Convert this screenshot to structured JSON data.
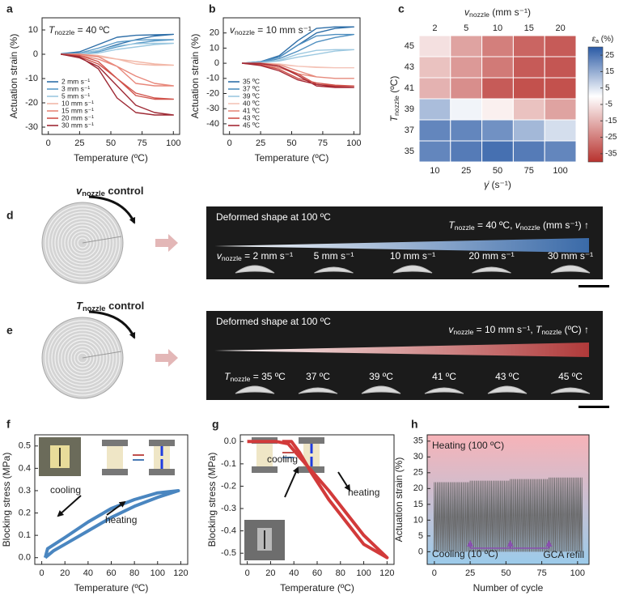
{
  "chart_data": [
    {
      "type": "line",
      "panel_label": "a",
      "annotation": [
        {
          "t": "T",
          "i": true
        },
        {
          "t": "nozzle",
          "sub": true
        },
        {
          "t": " = 40 ºC"
        }
      ],
      "xlabel": "Temperature (ºC)",
      "ylabel": "Actuation strain (%)",
      "xlim": [
        -5,
        105
      ],
      "xticks": [
        0,
        25,
        50,
        75,
        100
      ],
      "ylim": [
        -33,
        15
      ],
      "yticks": [
        -30,
        -20,
        -10,
        0,
        10
      ],
      "legend_corner": "lower left",
      "x": [
        10,
        25,
        40,
        55,
        70,
        85,
        100,
        85,
        70,
        55,
        40,
        25,
        10
      ],
      "series": [
        {
          "name": "2 mm s⁻¹",
          "color": "#2f6fa8",
          "values": [
            0,
            0.3,
            1.5,
            4,
            6,
            7.5,
            8.2,
            8,
            7.8,
            7,
            4,
            1,
            0.2
          ]
        },
        {
          "name": "3 mm s⁻¹",
          "color": "#5b9bc8",
          "values": [
            0,
            0.2,
            1,
            3,
            4.5,
            5.5,
            6,
            6,
            5.8,
            5,
            2.5,
            0.5,
            0
          ]
        },
        {
          "name": "5 mm s⁻¹",
          "color": "#9cc8e0",
          "values": [
            0,
            0,
            0.5,
            2,
            3,
            4,
            4.5,
            4.5,
            4.3,
            3.5,
            1.5,
            0.2,
            0
          ]
        },
        {
          "name": "10 mm s⁻¹",
          "color": "#f2b8a8",
          "values": [
            0,
            -0.3,
            -1,
            -2,
            -3,
            -4,
            -4.5,
            -4.5,
            -4,
            -2,
            -0.5,
            0,
            0
          ]
        },
        {
          "name": "15 mm s⁻¹",
          "color": "#e8877a",
          "values": [
            0,
            -0.5,
            -2,
            -5,
            -9,
            -12,
            -13,
            -13,
            -12,
            -5,
            -1,
            0,
            0
          ]
        },
        {
          "name": "20 mm s⁻¹",
          "color": "#d0524a",
          "values": [
            0,
            -1,
            -4,
            -10,
            -16,
            -18,
            -18.5,
            -18.5,
            -17,
            -10,
            -3,
            -0.5,
            0
          ]
        },
        {
          "name": "30 mm s⁻¹",
          "color": "#9e2a35",
          "values": [
            0,
            -1.5,
            -5,
            -13,
            -21,
            -24,
            -25,
            -25,
            -24,
            -18,
            -6,
            -1,
            0
          ]
        }
      ]
    },
    {
      "type": "line",
      "panel_label": "b",
      "annotation": [
        {
          "t": "v",
          "i": true
        },
        {
          "t": "nozzle",
          "sub": true
        },
        {
          "t": " = 10 mm s⁻¹"
        }
      ],
      "xlabel": "Temperature (ºC)",
      "ylabel": "Actuation strain (%)",
      "xlim": [
        -5,
        105
      ],
      "xticks": [
        0,
        25,
        50,
        75,
        100
      ],
      "ylim": [
        -47,
        30
      ],
      "yticks": [
        -40,
        -30,
        -20,
        -10,
        0,
        10,
        20
      ],
      "legend_corner": "lower left",
      "x": [
        10,
        25,
        40,
        55,
        70,
        85,
        100,
        85,
        70,
        55,
        40,
        25,
        10
      ],
      "series": [
        {
          "name": "35 ºC",
          "color": "#2f6fa8",
          "values": [
            0,
            1,
            4,
            12,
            20,
            23,
            24,
            24,
            23,
            15,
            5,
            1,
            0
          ]
        },
        {
          "name": "37 ºC",
          "color": "#4f8fc0",
          "values": [
            0,
            0.5,
            3,
            8,
            14,
            17,
            19,
            19,
            18,
            12,
            4,
            1,
            0
          ]
        },
        {
          "name": "39 ºC",
          "color": "#9cc8e0",
          "values": [
            0,
            0.3,
            1.5,
            4,
            6,
            8,
            9,
            9,
            8.5,
            6,
            2,
            0.5,
            0
          ]
        },
        {
          "name": "40 ºC",
          "color": "#f4c4b8",
          "values": [
            0,
            -0.3,
            -1,
            -2,
            -2.5,
            -3,
            -3,
            -3,
            -2.8,
            -2,
            -0.5,
            0,
            0
          ]
        },
        {
          "name": "41 ºC",
          "color": "#e68a7c",
          "values": [
            0,
            -1,
            -3,
            -7,
            -9,
            -10,
            -10,
            -10,
            -9,
            -5,
            -1,
            0,
            0
          ]
        },
        {
          "name": "43 ºC",
          "color": "#cf5048",
          "values": [
            0,
            -1,
            -4,
            -10,
            -13,
            -14.5,
            -15,
            -15,
            -14,
            -7,
            -2,
            0,
            0
          ]
        },
        {
          "name": "45 ºC",
          "color": "#a52a35",
          "values": [
            0,
            -1.5,
            -5,
            -11,
            -14,
            -15.5,
            -16,
            -16,
            -15,
            -8,
            -2,
            -0.3,
            0
          ]
        }
      ]
    },
    {
      "type": "heatmap",
      "panel_label": "c",
      "top_label": [
        {
          "t": "v",
          "i": true
        },
        {
          "t": "nozzle",
          "sub": true
        },
        {
          "t": " (mm s⁻¹)"
        }
      ],
      "top_categories": [
        2,
        5,
        10,
        15,
        20
      ],
      "xlabel": [
        {
          "t": "γ̇",
          "i": true
        },
        {
          "t": " (s⁻¹)"
        }
      ],
      "categories": [
        10,
        25,
        50,
        75,
        100
      ],
      "ylabel": [
        {
          "t": "T",
          "i": true
        },
        {
          "t": "nozzle",
          "sub": true
        },
        {
          "t": " (ºC)"
        }
      ],
      "rows": [
        45,
        43,
        41,
        39,
        37,
        35
      ],
      "values": [
        [
          -6,
          -18,
          -25,
          -30,
          -32
        ],
        [
          -12,
          -20,
          -26,
          -32,
          -33
        ],
        [
          -15,
          -22,
          -32,
          -34,
          -34
        ],
        [
          12,
          2,
          -3,
          -12,
          -18
        ],
        [
          22,
          22,
          20,
          13,
          6
        ],
        [
          22,
          24,
          26,
          24,
          22
        ]
      ],
      "colorbar_label": [
        {
          "t": "ε",
          "i": true
        },
        {
          "t": "a",
          "sub": true
        },
        {
          "t": " (%)"
        }
      ],
      "clim": [
        -40,
        30
      ],
      "cticks": [
        25,
        15,
        5,
        -5,
        -15,
        -25,
        -35
      ],
      "colors": [
        "#b8322e",
        "#ffffff",
        "#2a5aa5"
      ]
    },
    {
      "type": "line",
      "panel_label": "f",
      "xlabel": "Temperature (ºC)",
      "ylabel": "Blocking stress (MPa)",
      "xlim": [
        -6,
        126
      ],
      "xticks": [
        0,
        20,
        40,
        60,
        80,
        100,
        120
      ],
      "ylim": [
        -0.03,
        0.55
      ],
      "yticks": [
        {
          "value": 0,
          "label": "0.0"
        },
        0.1,
        0.2,
        0.3,
        0.4,
        0.5
      ],
      "annotations": [
        "cooling",
        "heating"
      ],
      "series": [
        {
          "color": "#4a86c0",
          "x": [
            3,
            10,
            20,
            40,
            60,
            80,
            100,
            118,
            100,
            80,
            60,
            40,
            20,
            5,
            3
          ],
          "values": [
            0,
            0.03,
            0.06,
            0.12,
            0.18,
            0.23,
            0.27,
            0.3,
            0.29,
            0.26,
            0.22,
            0.16,
            0.09,
            0.04,
            0
          ]
        }
      ]
    },
    {
      "type": "line",
      "panel_label": "g",
      "xlabel": "Temperature (ºC)",
      "ylabel": "Blocking stress (MPa)",
      "xlim": [
        -6,
        126
      ],
      "xticks": [
        0,
        20,
        40,
        60,
        80,
        100,
        120
      ],
      "ylim": [
        -0.55,
        0.03
      ],
      "yticks": [
        {
          "value": 0,
          "label": "0.0"
        },
        -0.1,
        -0.2,
        -0.3,
        -0.4,
        -0.5
      ],
      "annotations": [
        "cooling",
        "heating"
      ],
      "series": [
        {
          "color": "#d23a3a",
          "x": [
            0,
            25,
            35,
            45,
            55,
            70,
            85,
            100,
            120,
            100,
            85,
            70,
            55,
            45,
            38,
            30
          ],
          "values": [
            0,
            0,
            -0.01,
            -0.07,
            -0.13,
            -0.22,
            -0.32,
            -0.42,
            -0.52,
            -0.46,
            -0.36,
            -0.26,
            -0.14,
            -0.05,
            0,
            0
          ]
        }
      ]
    },
    {
      "type": "cycle",
      "panel_label": "h",
      "xlabel": "Number of cycle",
      "ylabel": "Actuation strain (%)",
      "xlim": [
        -5,
        108
      ],
      "xticks": [
        0,
        25,
        50,
        75,
        100
      ],
      "ylim": [
        -4,
        37
      ],
      "yticks": [
        0,
        5,
        10,
        15,
        20,
        25,
        30,
        35
      ],
      "color": "#666666",
      "regions": [
        {
          "label": "Heating (100 ºC)",
          "color": "#f7b3b8",
          "text_color": "#d33a3a"
        },
        {
          "label": "Cooling (10 ºC)",
          "color": "#9ccbea",
          "text_color": "#2a6ab0"
        }
      ],
      "annotation": "GCA refill",
      "annotation_color": "#8a4fb0",
      "refill_x": [
        25,
        53,
        80
      ],
      "x": [
        0,
        1,
        2,
        3,
        4,
        5,
        6,
        7,
        8,
        9,
        10,
        11,
        12,
        13,
        14,
        15,
        16,
        17,
        18,
        19,
        20,
        21,
        22,
        23,
        24,
        25,
        26,
        27,
        28,
        29,
        30,
        31,
        32,
        33,
        34,
        35,
        36,
        37,
        38,
        39,
        40,
        41,
        42,
        43,
        44,
        45,
        46,
        47,
        48,
        49,
        50,
        51,
        52,
        53,
        54,
        55,
        56,
        57,
        58,
        59,
        60,
        61,
        62,
        63,
        64,
        65,
        66,
        67,
        68,
        69,
        70,
        71,
        72,
        73,
        74,
        75,
        76,
        77,
        78,
        79,
        80,
        81,
        82,
        83,
        84,
        85,
        86,
        87,
        88,
        89,
        90,
        91,
        92,
        93,
        94,
        95,
        96,
        97,
        98,
        99,
        100,
        101,
        102,
        103
      ],
      "values": [
        22,
        22,
        22,
        22,
        22,
        22,
        22,
        22,
        22,
        22,
        22,
        22,
        22,
        22,
        22,
        22,
        22,
        22,
        22,
        22,
        22,
        22,
        22,
        22,
        22,
        22.5,
        22.5,
        22.5,
        22.5,
        22.5,
        22.5,
        22.5,
        22.5,
        22.5,
        22.5,
        22.5,
        22.5,
        22.5,
        22.5,
        22.5,
        22.5,
        22.5,
        22.5,
        22.5,
        22.5,
        22.5,
        22.5,
        22.5,
        22.5,
        22.5,
        22.5,
        22.5,
        22.5,
        23,
        23,
        23,
        23,
        23,
        23,
        23,
        23,
        23,
        23,
        23,
        23,
        23,
        23,
        23,
        23,
        23,
        23,
        23,
        23,
        23,
        23,
        23,
        23,
        23,
        23,
        23,
        23.5,
        23.5,
        23.5,
        23.5,
        23.5,
        23.5,
        23.5,
        23.5,
        23.5,
        23.5,
        23.5,
        23.5,
        23.5,
        23.5,
        23.5,
        23.5,
        23.5,
        23.5,
        23.5,
        23.5,
        23.5,
        23.5,
        23.5,
        23.5
      ],
      "low_values": [
        0,
        0,
        0,
        0,
        0,
        0,
        0,
        0,
        0,
        0,
        0,
        0,
        0,
        0,
        0,
        0,
        0,
        0,
        0,
        0,
        0,
        0,
        0,
        0,
        0,
        0,
        0,
        0,
        0,
        0,
        0,
        0,
        0,
        0,
        0,
        0,
        0,
        0,
        0,
        0,
        0,
        0,
        0,
        0,
        0,
        0,
        0,
        0,
        0,
        0,
        0,
        0,
        0,
        0,
        0,
        0,
        0,
        0,
        0,
        0,
        0,
        0,
        0,
        0,
        0,
        0,
        0,
        0,
        0,
        0,
        0,
        0,
        0,
        0,
        0,
        0,
        0,
        0,
        0,
        0,
        0,
        0,
        0,
        0,
        0,
        0,
        0,
        0,
        0,
        0,
        0,
        0,
        0,
        0,
        0,
        0,
        0,
        0,
        0,
        0,
        0,
        0,
        0,
        0
      ]
    }
  ],
  "panels": {
    "d": {
      "label": "d",
      "color": "#3a6aa8",
      "control": [
        {
          "t": "v",
          "i": true
        },
        {
          "t": "nozzle",
          "sub": true
        },
        {
          "t": " control"
        }
      ],
      "caption": "Deformed shape at 100 ºC",
      "condition": [
        {
          "t": "T",
          "i": true
        },
        {
          "t": "nozzle",
          "sub": true
        },
        {
          "t": " = 40 ºC, "
        },
        {
          "t": "v",
          "i": true
        },
        {
          "t": "nozzle",
          "sub": true
        },
        {
          "t": " (mm s⁻¹) ↑"
        }
      ],
      "samples": [
        [
          {
            "t": "v",
            "i": true
          },
          {
            "t": "nozzle",
            "sub": true
          },
          {
            "t": " = 2 mm s⁻¹"
          }
        ],
        [
          {
            "t": "5 mm s⁻¹"
          }
        ],
        [
          {
            "t": "10 mm s⁻¹"
          }
        ],
        [
          {
            "t": "20 mm s⁻¹"
          }
        ],
        [
          {
            "t": "30 mm s⁻¹"
          }
        ]
      ]
    },
    "e": {
      "label": "e",
      "color": "#b03a3a",
      "control": [
        {
          "t": "T",
          "i": true
        },
        {
          "t": "nozzle",
          "sub": true
        },
        {
          "t": " control"
        }
      ],
      "caption": "Deformed shape at 100 ºC",
      "condition": [
        {
          "t": "v",
          "i": true
        },
        {
          "t": "nozzle",
          "sub": true
        },
        {
          "t": " = 10 mm s⁻¹, "
        },
        {
          "t": "T",
          "i": true
        },
        {
          "t": "nozzle",
          "sub": true
        },
        {
          "t": " (ºC) ↑"
        }
      ],
      "samples": [
        [
          {
            "t": "T",
            "i": true
          },
          {
            "t": "nozzle",
            "sub": true
          },
          {
            "t": " = 35 ºC"
          }
        ],
        [
          {
            "t": "37 ºC"
          }
        ],
        [
          {
            "t": "39 ºC"
          }
        ],
        [
          {
            "t": "41 ºC"
          }
        ],
        [
          {
            "t": "43 ºC"
          }
        ],
        [
          {
            "t": "45 ºC"
          }
        ]
      ]
    }
  }
}
